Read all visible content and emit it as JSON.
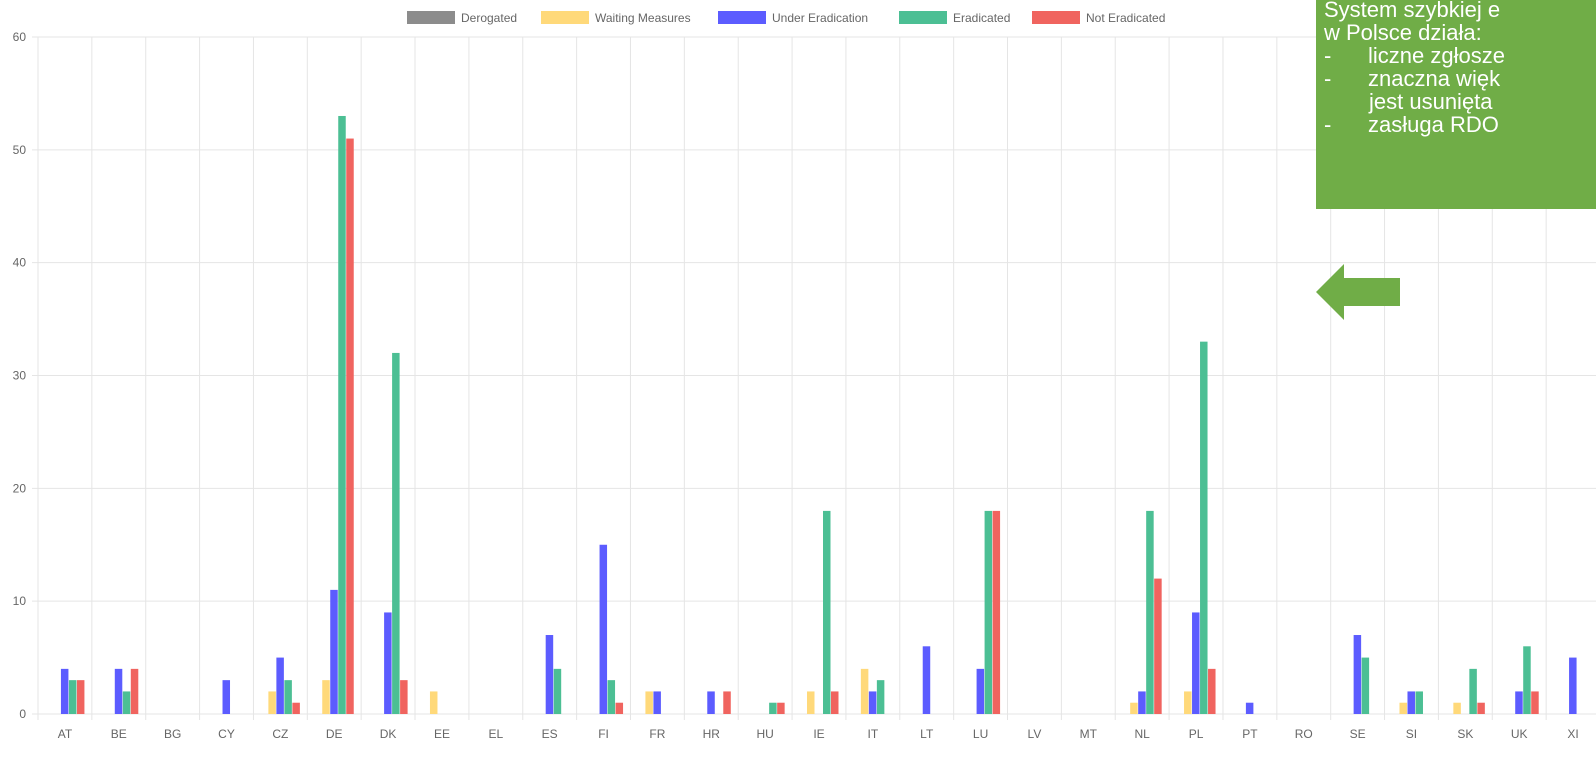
{
  "chart_data": {
    "type": "bar",
    "categories": [
      "AT",
      "BE",
      "BG",
      "CY",
      "CZ",
      "DE",
      "DK",
      "EE",
      "EL",
      "ES",
      "FI",
      "FR",
      "HR",
      "HU",
      "IE",
      "IT",
      "LT",
      "LU",
      "LV",
      "MT",
      "NL",
      "PL",
      "PT",
      "RO",
      "SE",
      "SI",
      "SK",
      "UK",
      "XI"
    ],
    "series": [
      {
        "name": "Derogated",
        "color": "#8c8c8c",
        "values": [
          0,
          0,
          0,
          0,
          0,
          0,
          0,
          0,
          0,
          0,
          0,
          0,
          0,
          0,
          0,
          0,
          0,
          0,
          0,
          0,
          0,
          0,
          0,
          0,
          0,
          0,
          0,
          0,
          0
        ]
      },
      {
        "name": "Waiting Measures",
        "color": "#ffd97a",
        "values": [
          0,
          0,
          0,
          0,
          2,
          3,
          0,
          2,
          0,
          0,
          0,
          2,
          0,
          0,
          2,
          4,
          0,
          0,
          0,
          0,
          1,
          2,
          0,
          0,
          0,
          1,
          1,
          0,
          0
        ]
      },
      {
        "name": "Under Eradication",
        "color": "#5c5cff",
        "values": [
          4,
          4,
          0,
          3,
          5,
          11,
          9,
          0,
          0,
          7,
          15,
          2,
          2,
          0,
          0,
          2,
          6,
          4,
          0,
          0,
          2,
          9,
          1,
          0,
          7,
          2,
          0,
          2,
          5
        ]
      },
      {
        "name": "Eradicated",
        "color": "#4cbf94",
        "values": [
          3,
          2,
          0,
          0,
          3,
          53,
          32,
          0,
          0,
          4,
          3,
          0,
          0,
          1,
          18,
          3,
          0,
          18,
          0,
          0,
          18,
          33,
          0,
          0,
          5,
          2,
          4,
          6,
          0
        ]
      },
      {
        "name": "Not Eradicated",
        "color": "#f0645f",
        "values": [
          3,
          4,
          0,
          0,
          1,
          51,
          3,
          0,
          0,
          0,
          1,
          0,
          2,
          1,
          2,
          0,
          0,
          18,
          0,
          0,
          12,
          4,
          0,
          0,
          0,
          0,
          1,
          2,
          0
        ]
      }
    ],
    "y_ticks": [
      0,
      10,
      20,
      30,
      40,
      50,
      60
    ],
    "ylim": [
      0,
      60
    ],
    "grid": true,
    "legend_position": "top"
  },
  "callout": {
    "line1": "System szybkiej e",
    "line2": "w Polsce działa:",
    "items": [
      {
        "dash": "-",
        "text": "liczne zgłosze"
      },
      {
        "dash": "-",
        "text": "znaczna więk",
        "cont": "jest usunięta"
      },
      {
        "dash": "-",
        "text": "zasługa RDO"
      }
    ]
  },
  "colors": {
    "callout_bg": "#70ad47",
    "arrow": "#70ad47"
  },
  "icons": {
    "arrow": "left-arrow-icon"
  }
}
